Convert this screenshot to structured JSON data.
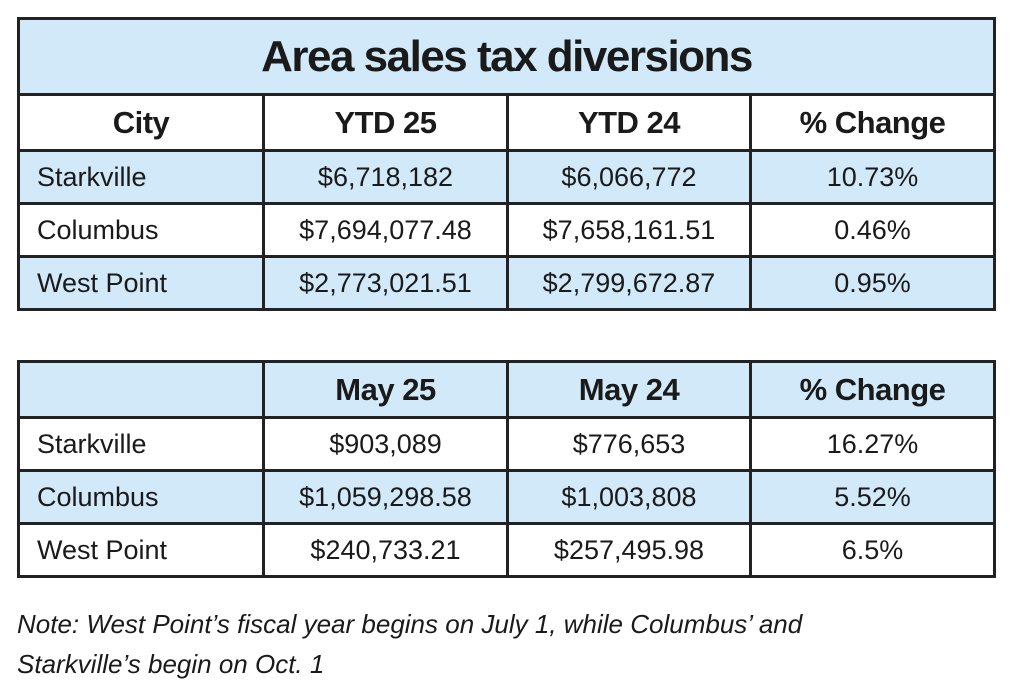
{
  "table1": {
    "title": "Area sales tax diversions",
    "header": [
      "City",
      "YTD 25",
      "YTD 24",
      "% Change"
    ],
    "rows": [
      [
        "Starkville",
        "$6,718,182",
        "$6,066,772",
        "10.73%"
      ],
      [
        "Columbus",
        "$7,694,077.48",
        "$7,658,161.51",
        "0.46%"
      ],
      [
        "West Point",
        "$2,773,021.51",
        "$2,799,672.87",
        "0.95%"
      ]
    ]
  },
  "table2": {
    "header": [
      null,
      "May 25",
      "May 24",
      "% Change"
    ],
    "rows": [
      [
        "Starkville",
        "$903,089",
        "$776,653",
        "16.27%"
      ],
      [
        "Columbus",
        "$1,059,298.58",
        "$1,003,808",
        "5.52%"
      ],
      [
        "West Point",
        "$240,733.21",
        "$257,495.98",
        "6.5%"
      ]
    ]
  },
  "note": {
    "lines": [
      "Note: West Point’s fiscal year begins on July 1, while Columbus’ and",
      "Starkville’s begin on Oct. 1"
    ]
  }
}
